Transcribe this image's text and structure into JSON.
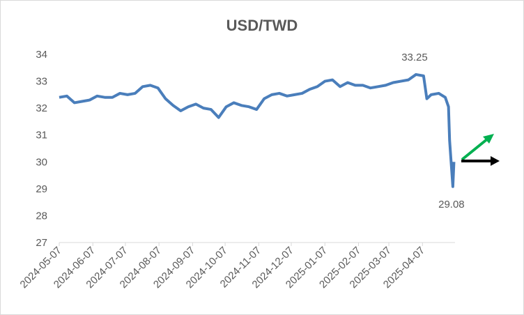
{
  "chart_data": {
    "type": "line",
    "title": "USD/TWD",
    "x": [
      "2024-05-07",
      "2024-05-14",
      "2024-05-21",
      "2024-05-28",
      "2024-06-04",
      "2024-06-11",
      "2024-06-18",
      "2024-06-25",
      "2024-07-02",
      "2024-07-09",
      "2024-07-16",
      "2024-07-23",
      "2024-07-30",
      "2024-08-06",
      "2024-08-13",
      "2024-08-20",
      "2024-08-27",
      "2024-09-03",
      "2024-09-10",
      "2024-09-17",
      "2024-09-24",
      "2024-10-01",
      "2024-10-08",
      "2024-10-15",
      "2024-10-22",
      "2024-10-29",
      "2024-11-05",
      "2024-11-12",
      "2024-11-19",
      "2024-11-26",
      "2024-12-03",
      "2024-12-10",
      "2024-12-17",
      "2024-12-24",
      "2024-12-31",
      "2025-01-07",
      "2025-01-14",
      "2025-01-21",
      "2025-01-28",
      "2025-02-04",
      "2025-02-11",
      "2025-02-18",
      "2025-02-25",
      "2025-03-04",
      "2025-03-11",
      "2025-03-18",
      "2025-03-25",
      "2025-04-01",
      "2025-04-08",
      "2025-04-11",
      "2025-04-15",
      "2025-04-22",
      "2025-04-28",
      "2025-05-01",
      "2025-05-02",
      "2025-05-05",
      "2025-05-06"
    ],
    "series": [
      {
        "name": "USD/TWD",
        "color": "#4a7ebb",
        "values": [
          32.4,
          32.45,
          32.2,
          32.25,
          32.3,
          32.45,
          32.4,
          32.4,
          32.55,
          32.5,
          32.55,
          32.8,
          32.85,
          32.75,
          32.35,
          32.1,
          31.9,
          32.05,
          32.15,
          32.0,
          31.95,
          31.65,
          32.05,
          32.2,
          32.1,
          32.05,
          31.95,
          32.35,
          32.5,
          32.55,
          32.45,
          32.5,
          32.55,
          32.7,
          32.8,
          33.0,
          33.05,
          32.8,
          32.95,
          32.85,
          32.85,
          32.75,
          32.8,
          32.85,
          32.95,
          33.0,
          33.05,
          33.25,
          33.2,
          32.35,
          32.5,
          32.55,
          32.4,
          32.05,
          30.8,
          29.08,
          30.0
        ]
      }
    ],
    "annotations": [
      {
        "x": "2025-04-01",
        "value": 33.25
      },
      {
        "x": "2025-05-05",
        "value": 29.08
      }
    ],
    "xlim": [
      "2024-05-07",
      "2025-05-07"
    ],
    "xticks": [
      "2024-05-07",
      "2024-06-07",
      "2024-07-07",
      "2024-08-07",
      "2024-09-07",
      "2024-10-07",
      "2024-11-07",
      "2024-12-07",
      "2025-01-07",
      "2025-02-07",
      "2025-03-07",
      "2025-04-07"
    ],
    "ylim": [
      27,
      34
    ],
    "yticks": [
      27,
      28,
      29,
      30,
      31,
      32,
      33,
      34
    ],
    "grid": false
  }
}
